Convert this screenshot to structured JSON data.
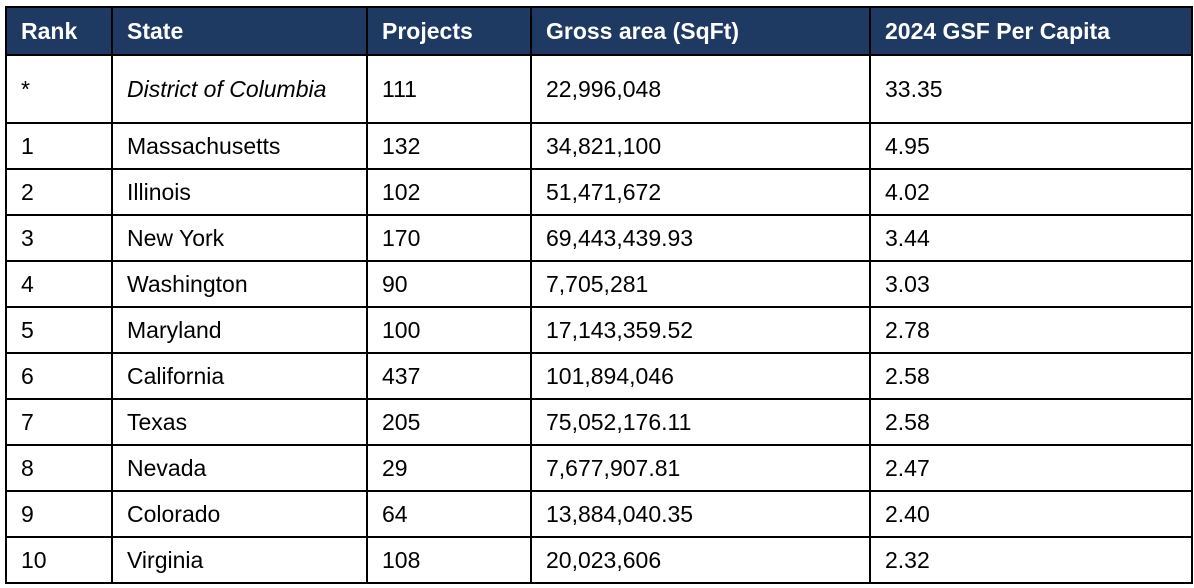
{
  "header": [
    "Rank",
    "State",
    "Projects",
    "Gross area (SqFt)",
    "2024 GSF Per Capita"
  ],
  "header_color": "#1e3a63",
  "rows": [
    {
      "rank": "*",
      "state": "District of Columbia",
      "projects": "111",
      "gross": "22,996,048",
      "per_capita": "33.35"
    },
    {
      "rank": "1",
      "state": "Massachusetts",
      "projects": "132",
      "gross": "34,821,100",
      "per_capita": "4.95"
    },
    {
      "rank": "2",
      "state": "Illinois",
      "projects": "102",
      "gross": "51,471,672",
      "per_capita": "4.02"
    },
    {
      "rank": "3",
      "state": "New York",
      "projects": "170",
      "gross": "69,443,439.93",
      "per_capita": "3.44"
    },
    {
      "rank": "4",
      "state": "Washington",
      "projects": "90",
      "gross": "7,705,281",
      "per_capita": "3.03"
    },
    {
      "rank": "5",
      "state": "Maryland",
      "projects": "100",
      "gross": "17,143,359.52",
      "per_capita": "2.78"
    },
    {
      "rank": "6",
      "state": "California",
      "projects": "437",
      "gross": "101,894,046",
      "per_capita": "2.58"
    },
    {
      "rank": "7",
      "state": "Texas",
      "projects": "205",
      "gross": "75,052,176.11",
      "per_capita": "2.58"
    },
    {
      "rank": "8",
      "state": "Nevada",
      "projects": "29",
      "gross": "7,677,907.81",
      "per_capita": "2.47"
    },
    {
      "rank": "9",
      "state": "Colorado",
      "projects": "64",
      "gross": "13,884,040.35",
      "per_capita": "2.40"
    },
    {
      "rank": "10",
      "state": "Virginia",
      "projects": "108",
      "gross": "20,023,606",
      "per_capita": "2.32"
    }
  ]
}
